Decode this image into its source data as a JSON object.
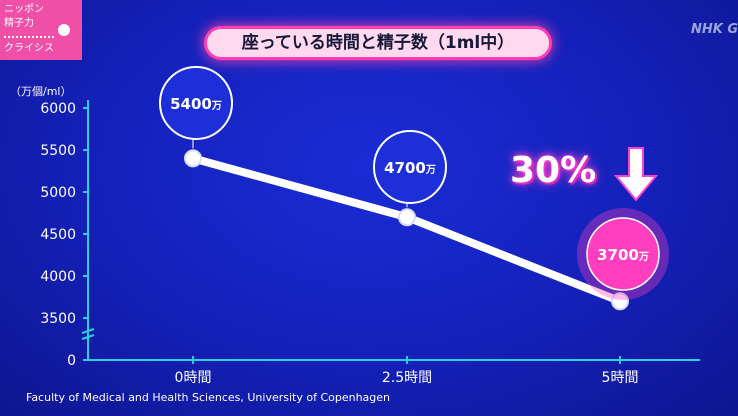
{
  "logo": {
    "line1": "ニッポン",
    "line2": "精子力",
    "line3": "クライシス"
  },
  "header": {
    "title": "座っている時間と精子数（1ml中）",
    "broadcaster": "NHK G"
  },
  "y_unit": "（万個/ml）",
  "callout": {
    "percent": "30%",
    "highlight_color": "#ff3fc0"
  },
  "source": "Faculty of Medical and Health Sciences, University of Copenhagen",
  "chart_data": {
    "type": "line",
    "title": "座っている時間と精子数（1ml中）",
    "ylabel": "（万個/ml）",
    "xlabel": "",
    "categories": [
      "0時間",
      "2.5時間",
      "5時間"
    ],
    "values": [
      5400,
      4700,
      3700
    ],
    "data_labels": [
      "5400",
      "4700",
      "3700"
    ],
    "data_label_unit": "万",
    "yticks": [
      "0",
      "3500",
      "4000",
      "4500",
      "5000",
      "5500",
      "6000"
    ],
    "ylim": [
      3500,
      6000
    ],
    "axis_break": true,
    "grid": false,
    "line_color": "#ffffff",
    "axis_color": "#28d0e0"
  }
}
